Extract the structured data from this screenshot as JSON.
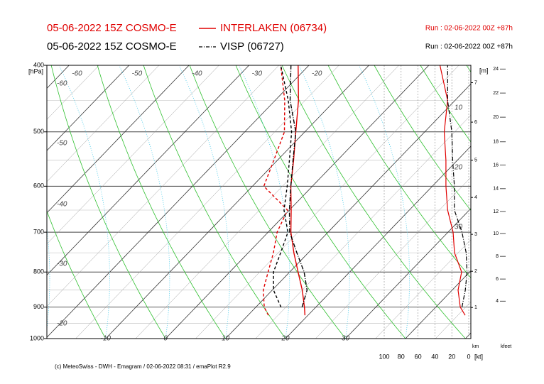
{
  "chart_data": {
    "type": "emagram",
    "series": [
      {
        "name": "INTERLAKEN (06734)",
        "model": "05-06-2022 15Z COSMO-E",
        "run": "Run : 02-06-2022 00Z +87h",
        "color": "#e00000",
        "line": "solid",
        "temperature": [
          19.5,
          18.1,
          15.0,
          11.4,
          7.6,
          3.8,
          0.3,
          -3.6,
          -7.3,
          -11.5,
          -16.1,
          -21.8
        ],
        "dewpoint": [
          13.4,
          11.4,
          8.5,
          6.4,
          4.2,
          1.5,
          -0.3,
          -8.1,
          -10.6,
          -13.4,
          -18.4,
          -24.7
        ],
        "wind_speed": [
          4.2,
          10,
          12.6,
          8.4,
          16.8,
          18.5,
          25,
          27,
          27,
          29,
          25,
          34
        ]
      },
      {
        "name": "VISP (06727)",
        "model": "05-06-2022 15Z COSMO-E",
        "run": "Run : 02-06-2022 00Z +87h",
        "color": "#000000",
        "line": "dashdot",
        "temperature": [
          null,
          17.7,
          15.8,
          12.4,
          8.1,
          3.6,
          0,
          -3.6,
          -7.4,
          -11.5,
          -17.5,
          -23
        ],
        "dewpoint": [
          null,
          14.2,
          10.2,
          7.3,
          5.4,
          3.3,
          -0.9,
          -4.2,
          -8.0,
          -12.2,
          -17.8,
          -24.7
        ],
        "wind_speed": [
          null,
          8,
          4,
          2,
          3,
          8,
          17,
          17,
          19,
          20,
          25,
          25
        ]
      }
    ],
    "pressure": [
      925,
      900,
      850,
      800,
      750,
      700,
      650,
      600,
      550,
      500,
      450,
      400
    ],
    "ylabel": "[hPa]",
    "ylim": [
      1000,
      400
    ],
    "log_y": true,
    "yticks": [
      400,
      500,
      600,
      700,
      800,
      900,
      1000
    ],
    "xlim": [
      -19.8,
      50.9
    ],
    "skew": 43.9,
    "xticks": [
      -10,
      0,
      10,
      20,
      30
    ],
    "isotherm_labels": [
      -60,
      -50,
      -40,
      -30,
      -20
    ],
    "theta_labels": [
      -60,
      -50,
      -40,
      -30,
      -20
    ],
    "right_labels": [
      10,
      20,
      30
    ],
    "wind_xlim": [
      100,
      0
    ],
    "wind_xticks": [
      100,
      80,
      60,
      40,
      20,
      0
    ],
    "wind_unit": "[kt]",
    "height_label": "[m]",
    "km_label": "km",
    "km_ticks": [
      {
        "value": 901,
        "label": "1"
      },
      {
        "value": 798,
        "label": "2"
      },
      {
        "value": 705,
        "label": "3"
      },
      {
        "value": 623,
        "label": "4"
      },
      {
        "value": 550,
        "label": "5"
      },
      {
        "value": 484,
        "label": "6"
      },
      {
        "value": 424,
        "label": "7"
      }
    ],
    "kfeet_label": "kfeet",
    "kfeet_ticks": [
      {
        "value": 882,
        "label": "4"
      },
      {
        "value": 819,
        "label": "6"
      },
      {
        "value": 759,
        "label": "8"
      },
      {
        "value": 703,
        "label": "10"
      },
      {
        "value": 653,
        "label": "12"
      },
      {
        "value": 605,
        "label": "14"
      },
      {
        "value": 559,
        "label": "16"
      },
      {
        "value": 517,
        "label": "18"
      },
      {
        "value": 476,
        "label": "20"
      },
      {
        "value": 439,
        "label": "22"
      },
      {
        "value": 405,
        "label": "24"
      }
    ],
    "footer": "(c) MeteoSwiss - DWH - Emagram / 02-06-2022  08:31 / emaPlot R2.9"
  }
}
